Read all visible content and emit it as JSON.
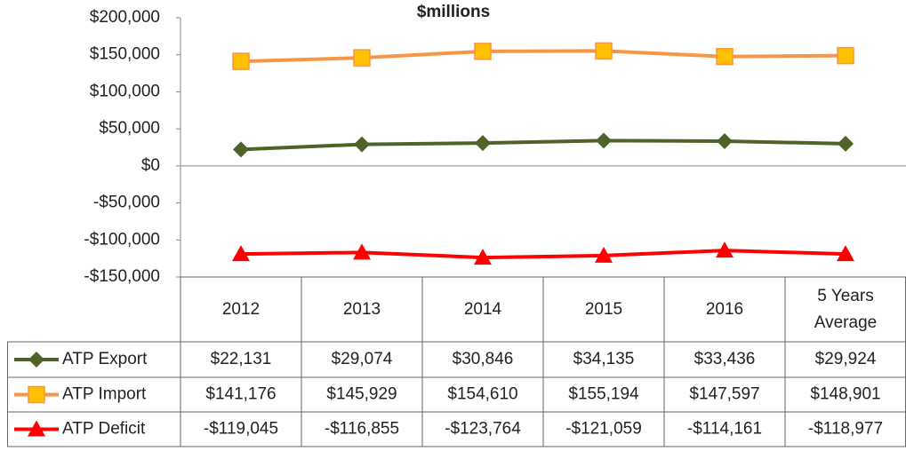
{
  "chart_data": {
    "type": "line",
    "title": "$millions",
    "categories": [
      "2012",
      "2013",
      "2014",
      "2015",
      "2016",
      "5 Years Average"
    ],
    "ylim": [
      -150000,
      200000
    ],
    "yticks": [
      {
        "value": -150000,
        "label": "-$150,000"
      },
      {
        "value": -100000,
        "label": "-$100,000"
      },
      {
        "value": -50000,
        "label": "-$50,000"
      },
      {
        "value": 0,
        "label": "$0"
      },
      {
        "value": 50000,
        "label": "$50,000"
      },
      {
        "value": 100000,
        "label": "$100,000"
      },
      {
        "value": 150000,
        "label": "$150,000"
      },
      {
        "value": 200000,
        "label": "$200,000"
      }
    ],
    "series": [
      {
        "name": "ATP Export",
        "color": "#4f6228",
        "marker": "diamond",
        "values": [
          22131,
          29074,
          30846,
          34135,
          33436,
          29924
        ],
        "value_labels": [
          "$22,131",
          "$29,074",
          "$30,846",
          "$34,135",
          "$33,436",
          "$29,924"
        ]
      },
      {
        "name": "ATP Import",
        "color": "#f79646",
        "marker": "square",
        "values": [
          141176,
          145929,
          154610,
          155194,
          147597,
          148901
        ],
        "value_labels": [
          "$141,176",
          "$145,929",
          "$154,610",
          "$155,194",
          "$147,597",
          "$148,901"
        ]
      },
      {
        "name": "ATP Deficit",
        "color": "#ff0000",
        "marker": "triangle",
        "values": [
          -119045,
          -116855,
          -123764,
          -121059,
          -114161,
          -118977
        ],
        "value_labels": [
          "-$119,045",
          "-$116,855",
          "-$123,764",
          "-$121,059",
          "-$114,161",
          "-$118,977"
        ]
      }
    ]
  }
}
